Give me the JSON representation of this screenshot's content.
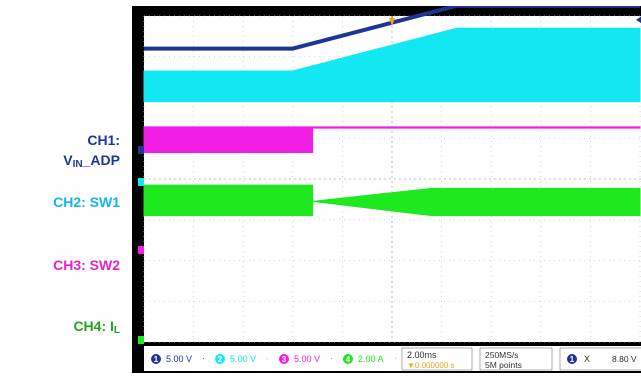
{
  "labels": {
    "ch1": {
      "prefix": "CH1:",
      "main": "V",
      "sub": "IN",
      "suffix": "_ADP"
    },
    "ch2": "CH2: SW1",
    "ch3": "CH3: SW2",
    "ch4": {
      "main": "CH4: I",
      "sub": "L"
    }
  },
  "colors": {
    "ch1": "#1f3596",
    "ch2": "#12e8f2",
    "ch3": "#f21ee6",
    "ch4": "#1ee81e",
    "ch2_label": "#12b6e6",
    "ch3_label": "#e621c8",
    "ch4_label": "#1fa51f",
    "trigger": "#f2a41e"
  },
  "status_bar": {
    "ch1_scale": "5.00 V",
    "ch2_scale": "5.00 V",
    "ch3_scale": "5.00 V",
    "ch4_scale": "2.00 A",
    "ch_numbers": [
      "1",
      "2",
      "3",
      "4"
    ],
    "timebase": "2.00ms",
    "trigger_position": "▼0.000000 s",
    "sample_rate": "250MS/s",
    "record_length": "5M points",
    "trigger_level": "8.80 V",
    "trigger_source": "1",
    "trigger_symbol": "X"
  },
  "chart_data": {
    "type": "line",
    "title": "",
    "x_divisions": 10,
    "y_divisions": 8,
    "x_unit_per_div": "2.00ms",
    "series": [
      {
        "name": "CH1",
        "kind": "line",
        "scale": "5.00 V",
        "x": [
          0,
          3.0,
          6.3,
          10
        ],
        "y": [
          3.2,
          3.2,
          4.25,
          4.25
        ]
      },
      {
        "name": "CH2",
        "kind": "switching-envelope",
        "scale": "5.00 V",
        "x": [
          0,
          3.0,
          6.3,
          10
        ],
        "low": [
          1.9,
          1.9,
          1.9,
          1.9
        ],
        "high": [
          2.65,
          2.65,
          3.7,
          3.7
        ]
      },
      {
        "name": "CH3",
        "kind": "switching-envelope",
        "scale": "5.00 V",
        "x": [
          0,
          3.4,
          3.4,
          10
        ],
        "low": [
          0.65,
          0.65,
          1.25,
          1.25
        ],
        "high": [
          1.28,
          1.28,
          1.28,
          1.28
        ]
      },
      {
        "name": "CH4",
        "kind": "switching-envelope",
        "scale": "2.00 A",
        "x": [
          0,
          3.4,
          3.4,
          5.8,
          10
        ],
        "low": [
          -0.9,
          -0.9,
          -0.55,
          -0.9,
          -0.9
        ],
        "high": [
          -0.15,
          -0.15,
          -0.55,
          -0.23,
          -0.23
        ]
      }
    ]
  }
}
